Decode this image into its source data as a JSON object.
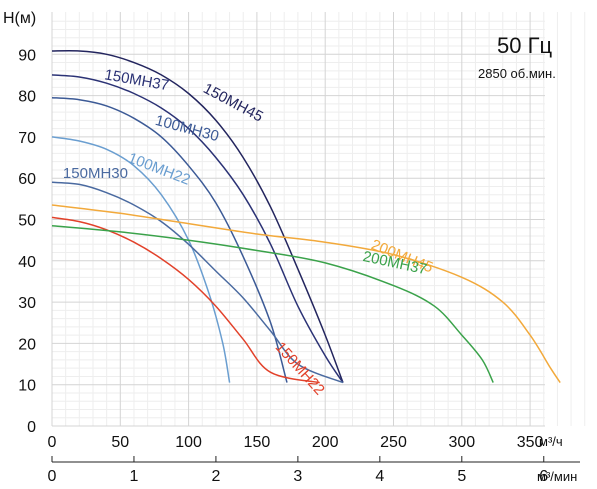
{
  "header": {
    "frequency": "50 Гц",
    "speed": "2850 об.мин."
  },
  "chart_data": {
    "type": "line",
    "ylabel": "H(м)",
    "x_unit_primary": "м³/ч",
    "x_unit_secondary": "м³/мин",
    "x_range": [
      0,
      400
    ],
    "y_range": [
      0,
      100
    ],
    "x_ticks": [
      0,
      50,
      100,
      150,
      200,
      250,
      300,
      350
    ],
    "x_ticks_secondary": [
      0,
      1,
      2,
      3,
      4,
      5,
      6
    ],
    "y_ticks": [
      0,
      10,
      20,
      30,
      40,
      50,
      60,
      70,
      80,
      90
    ],
    "grid": true,
    "series": [
      {
        "name": "150MH45",
        "color": "#23255e",
        "label_pos": [
          110,
          81
        ],
        "label_rot": 28,
        "points": [
          [
            0,
            90.8
          ],
          [
            20,
            90.8
          ],
          [
            40,
            90
          ],
          [
            60,
            88
          ],
          [
            80,
            85
          ],
          [
            100,
            80.5
          ],
          [
            120,
            74
          ],
          [
            140,
            65
          ],
          [
            160,
            53
          ],
          [
            180,
            38
          ],
          [
            200,
            22
          ],
          [
            213,
            10.5
          ]
        ]
      },
      {
        "name": "150MH37",
        "color": "#2b3275",
        "label_pos": [
          38,
          84
        ],
        "label_rot": 10,
        "points": [
          [
            0,
            85
          ],
          [
            20,
            84.5
          ],
          [
            40,
            83
          ],
          [
            60,
            80.5
          ],
          [
            80,
            77
          ],
          [
            100,
            72
          ],
          [
            120,
            65
          ],
          [
            140,
            56
          ],
          [
            160,
            44
          ],
          [
            180,
            29
          ],
          [
            200,
            17
          ],
          [
            213,
            10.5
          ]
        ]
      },
      {
        "name": "100MH30",
        "color": "#3c5a96",
        "label_pos": [
          75,
          73
        ],
        "label_rot": 15,
        "points": [
          [
            0,
            79.5
          ],
          [
            20,
            79
          ],
          [
            40,
            77.5
          ],
          [
            60,
            74.5
          ],
          [
            80,
            70
          ],
          [
            100,
            63
          ],
          [
            120,
            54
          ],
          [
            140,
            41
          ],
          [
            160,
            25
          ],
          [
            172,
            10.5
          ]
        ]
      },
      {
        "name": "100MH22",
        "color": "#6a9ed0",
        "label_pos": [
          55,
          64
        ],
        "label_rot": 21,
        "points": [
          [
            0,
            70
          ],
          [
            20,
            69
          ],
          [
            40,
            67
          ],
          [
            60,
            63
          ],
          [
            80,
            56
          ],
          [
            100,
            45
          ],
          [
            115,
            32
          ],
          [
            125,
            20
          ],
          [
            130,
            10.5
          ]
        ]
      },
      {
        "name": "150MH30",
        "color": "#4a6aa0",
        "label_pos": [
          8,
          60
        ],
        "label_rot": 0,
        "points": [
          [
            0,
            59
          ],
          [
            20,
            58.5
          ],
          [
            40,
            56.5
          ],
          [
            60,
            53.5
          ],
          [
            80,
            49.5
          ],
          [
            100,
            44
          ],
          [
            120,
            37.5
          ],
          [
            140,
            31
          ],
          [
            160,
            23
          ],
          [
            180,
            15
          ],
          [
            213,
            10.5
          ]
        ]
      },
      {
        "name": "150MH22",
        "color": "#e2412a",
        "label_pos": [
          163,
          19
        ],
        "label_rot": 48,
        "points": [
          [
            0,
            50.5
          ],
          [
            20,
            49.5
          ],
          [
            40,
            47.5
          ],
          [
            60,
            44.5
          ],
          [
            80,
            40.5
          ],
          [
            100,
            35.5
          ],
          [
            120,
            29
          ],
          [
            140,
            21
          ],
          [
            160,
            13
          ],
          [
            196,
            10.5
          ]
        ]
      },
      {
        "name": "200MH45",
        "color": "#f2a93b",
        "label_pos": [
          233,
          43
        ],
        "label_rot": 22,
        "points": [
          [
            0,
            53.5
          ],
          [
            50,
            51.5
          ],
          [
            100,
            49
          ],
          [
            150,
            46.5
          ],
          [
            200,
            44.5
          ],
          [
            250,
            41.5
          ],
          [
            300,
            36
          ],
          [
            330,
            30
          ],
          [
            350,
            22
          ],
          [
            365,
            14
          ],
          [
            372,
            10.5
          ]
        ]
      },
      {
        "name": "200MH37",
        "color": "#3aa24a",
        "label_pos": [
          227,
          40
        ],
        "label_rot": 12,
        "points": [
          [
            0,
            48.5
          ],
          [
            50,
            47
          ],
          [
            100,
            45
          ],
          [
            150,
            42.5
          ],
          [
            200,
            39.5
          ],
          [
            250,
            34
          ],
          [
            280,
            29
          ],
          [
            300,
            22
          ],
          [
            315,
            16
          ],
          [
            323,
            10.5
          ]
        ]
      }
    ]
  }
}
